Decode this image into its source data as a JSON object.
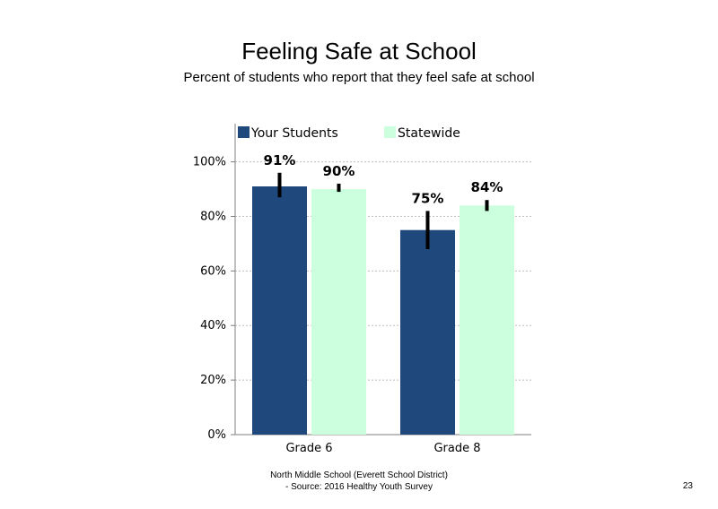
{
  "title": "Feeling Safe at School",
  "subtitle": "Percent of students  who report that they feel safe at school",
  "footer_line1": "North Middle School (Everett School District)",
  "footer_line2": "- Source: 2016 Healthy Youth Survey",
  "page_number": "23",
  "chart_data": {
    "type": "bar",
    "categories": [
      "Grade 6",
      "Grade 8"
    ],
    "series": [
      {
        "name": "Your Students",
        "color": "#1f497d",
        "values": [
          91,
          75
        ],
        "labels": [
          "91%",
          "75%"
        ],
        "error_low": [
          87,
          68
        ],
        "error_high": [
          96,
          82
        ]
      },
      {
        "name": "Statewide",
        "color": "#ccffdd",
        "values": [
          90,
          84
        ],
        "labels": [
          "90%",
          "84%"
        ],
        "error_low": [
          89,
          82
        ],
        "error_high": [
          92,
          86
        ]
      }
    ],
    "ylim": [
      0,
      100
    ],
    "yticks": [
      "0%",
      "20%",
      "40%",
      "60%",
      "80%",
      "100%"
    ],
    "ytick_values": [
      0,
      20,
      40,
      60,
      80,
      100
    ],
    "grid": "horizontal dotted",
    "legend_position": "top-left"
  }
}
